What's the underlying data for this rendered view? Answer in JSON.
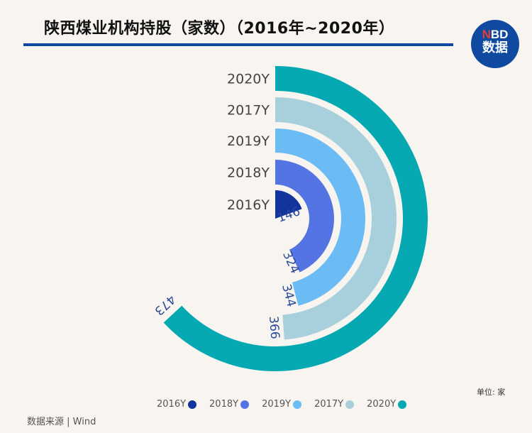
{
  "title": "陕西煤业机构持股（家数）（2016年~2020年）",
  "logo": {
    "top_red": "N",
    "top": "BD",
    "bottom": "数据"
  },
  "unit": "单位: 家",
  "source": "数据来源 | Wind",
  "chart_data": {
    "type": "radial-bar",
    "title": "陕西煤业机构持股（家数）（2016年~2020年）",
    "angle_max": 750,
    "categories": [
      "2016Y",
      "2018Y",
      "2019Y",
      "2017Y",
      "2020Y"
    ],
    "values": [
      146,
      324,
      344,
      366,
      473
    ],
    "colors": [
      "#12349c",
      "#5574e4",
      "#6bbcf4",
      "#a8d0dc",
      "#06a9b1"
    ],
    "legend_position": "bottom"
  }
}
